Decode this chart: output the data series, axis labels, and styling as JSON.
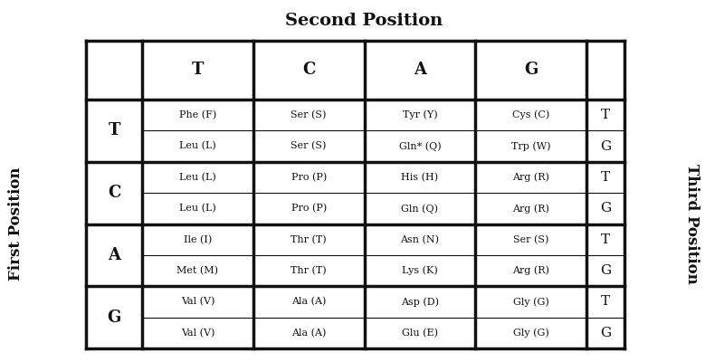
{
  "title": "Second Position",
  "left_label": "First Position",
  "right_label": "Third Position",
  "cols": [
    "T",
    "C",
    "A",
    "G"
  ],
  "rows": [
    "T",
    "C",
    "A",
    "G"
  ],
  "table": {
    "T": {
      "T": [
        "Phe (F)",
        "Leu (L)"
      ],
      "C": [
        "Ser (S)",
        "Ser (S)"
      ],
      "A": [
        "Tyr (Y)",
        "Gln* (Q)"
      ],
      "G": [
        "Cys (C)",
        "Trp (W)"
      ]
    },
    "C": {
      "T": [
        "Leu (L)",
        "Leu (L)"
      ],
      "C": [
        "Pro (P)",
        "Pro (P)"
      ],
      "A": [
        "His (H)",
        "Gln (Q)"
      ],
      "G": [
        "Arg (R)",
        "Arg (R)"
      ]
    },
    "A": {
      "T": [
        "Ile (I)",
        "Met (M)"
      ],
      "C": [
        "Thr (T)",
        "Thr (T)"
      ],
      "A": [
        "Asn (N)",
        "Lys (K)"
      ],
      "G": [
        "Ser (S)",
        "Arg (R)"
      ]
    },
    "G": {
      "T": [
        "Val (V)",
        "Val (V)"
      ],
      "C": [
        "Ala (A)",
        "Ala (A)"
      ],
      "A": [
        "Asp (D)",
        "Glu (E)"
      ],
      "G": [
        "Gly (G)",
        "Gly (G)"
      ]
    }
  },
  "bg_color": "#ffffff",
  "table_bg": "#ffffff",
  "border_color": "#111111",
  "text_color": "#111111",
  "header_color": "#111111",
  "title_fontsize": 14,
  "header_fontsize": 13,
  "cell_fontsize": 8,
  "label_fontsize": 11,
  "side_label_fontsize": 12
}
